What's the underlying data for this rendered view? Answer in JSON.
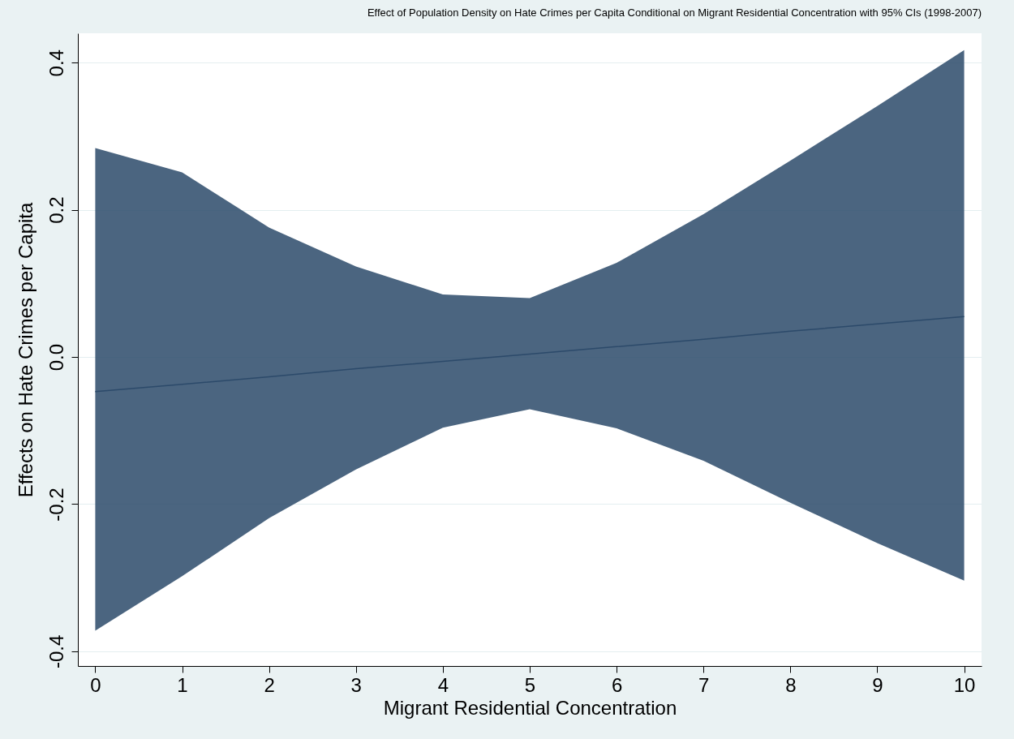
{
  "chart_data": {
    "type": "line",
    "title": "Effect of Population Density on Hate Crimes per Capita Conditional on Migrant Residential Concentration with 95% CIs (1998-2007)",
    "xlabel": "Migrant Residential Concentration",
    "ylabel": "Effects on Hate Crimes per Capita",
    "x": [
      0,
      1,
      2,
      3,
      4,
      5,
      6,
      7,
      8,
      9,
      10
    ],
    "series": [
      {
        "color": "#2c4a6a",
        "values": [
          -0.047,
          -0.037,
          -0.027,
          -0.016,
          -0.006,
          0.004,
          0.014,
          0.024,
          0.035,
          0.045,
          0.055
        ],
        "lower": [
          -0.372,
          -0.298,
          -0.219,
          -0.153,
          -0.096,
          -0.071,
          -0.097,
          -0.141,
          -0.198,
          -0.253,
          -0.304
        ],
        "upper": [
          0.284,
          0.251,
          0.176,
          0.123,
          0.085,
          0.08,
          0.128,
          0.194,
          0.267,
          0.341,
          0.417
        ]
      }
    ],
    "xlim": [
      -0.2,
      10.2
    ],
    "ylim": [
      -0.42,
      0.44
    ],
    "xticks": [
      0,
      1,
      2,
      3,
      4,
      5,
      6,
      7,
      8,
      9,
      10
    ],
    "yticks": [
      {
        "value": -0.4,
        "label": "-0.4"
      },
      {
        "value": -0.2,
        "label": "-0.2"
      },
      {
        "value": 0,
        "label": "0.0"
      },
      {
        "value": 0.2,
        "label": "0.2"
      },
      {
        "value": 0.4,
        "label": "0.4"
      }
    ],
    "grid": "y",
    "marker": "none",
    "line_style": "solid"
  }
}
